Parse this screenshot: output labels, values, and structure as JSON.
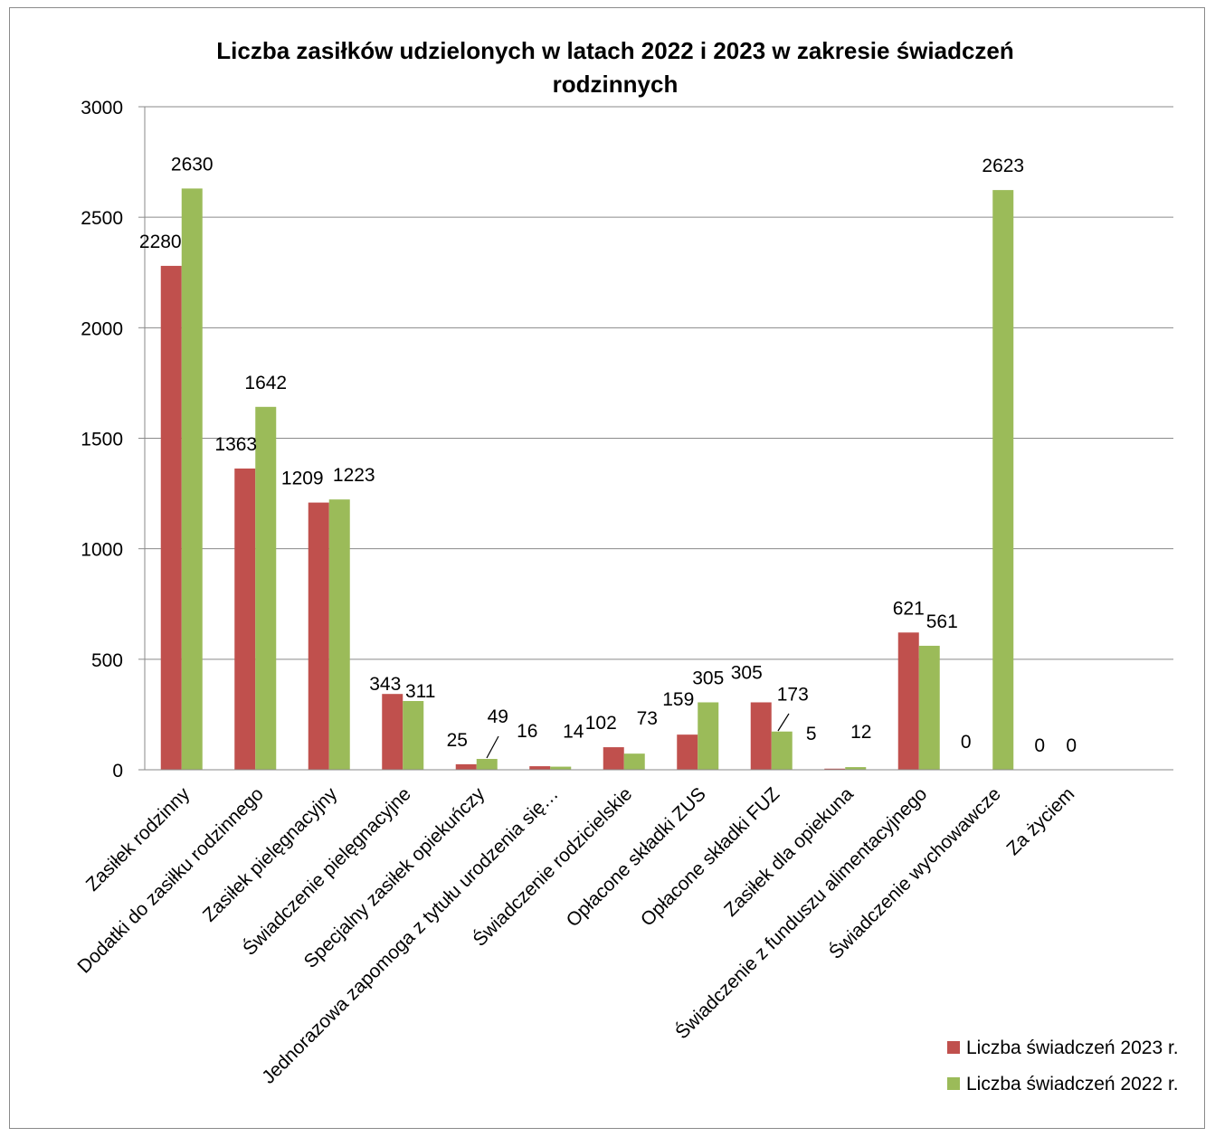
{
  "chart_data": {
    "type": "bar",
    "title_lines": [
      "Liczba  zasiłków udzielonych w latach 2022 i 2023 w zakresie świadczeń",
      "rodzinnych"
    ],
    "categories": [
      "Zasiłek rodzinny",
      "Dodatki do zasiłku rodzinnego",
      "Zasiłek pielęgnacyjny",
      "Świadczenie pielęgnacyjne",
      "Specjalny zasiłek opiekuńczy",
      "Jednorazowa zapomoga z tytułu urodzenia się…",
      "Świadczenie rodzicielskie",
      "Opłacone składki ZUS",
      "Opłacone składki FUZ",
      "Zasiłek dla opiekuna",
      "Świadczenie z funduszu alimentacyjnego",
      "Świadczenie wychowawcze",
      "Za życiem"
    ],
    "series": [
      {
        "name": "Liczba świadczeń 2023 r.",
        "color": "#c0504d",
        "values": [
          2280,
          1363,
          1209,
          343,
          25,
          16,
          102,
          159,
          305,
          5,
          621,
          0,
          0
        ]
      },
      {
        "name": "Liczba świadczeń 2022 r.",
        "color": "#9bbb59",
        "values": [
          2630,
          1642,
          1223,
          311,
          49,
          14,
          73,
          305,
          173,
          12,
          561,
          2623,
          0
        ]
      }
    ],
    "ylim": [
      0,
      3000
    ],
    "yticks": [
      0,
      500,
      1000,
      1500,
      2000,
      2500,
      3000
    ],
    "grid": true,
    "legend_position": "bottom-right"
  }
}
